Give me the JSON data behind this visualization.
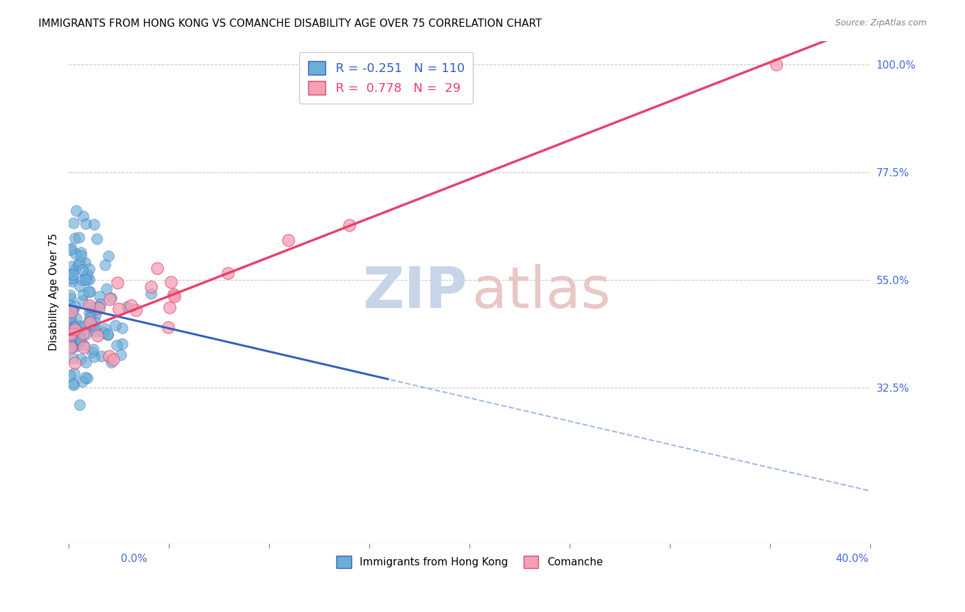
{
  "title": "IMMIGRANTS FROM HONG KONG VS COMANCHE DISABILITY AGE OVER 75 CORRELATION CHART",
  "source": "Source: ZipAtlas.com",
  "ylabel": "Disability Age Over 75",
  "ytick_vals": [
    0.325,
    0.55,
    0.775,
    1.0
  ],
  "ytick_labels": [
    "32.5%",
    "55.0%",
    "77.5%",
    "100.0%"
  ],
  "xmin": 0.0,
  "xmax": 0.4,
  "ymin": 0.0,
  "ymax": 1.05,
  "blue_color": "#6BAED6",
  "pink_color": "#F4A0B5",
  "blue_line_color": "#3060C0",
  "pink_line_color": "#E8406A",
  "blue_edge_color": "#3060C0",
  "pink_edge_color": "#E8406A",
  "title_fontsize": 11,
  "source_fontsize": 9,
  "watermark_zip_color": "#C8D4E8",
  "watermark_atlas_color": "#E8C8C4",
  "right_axis_color": "#4169E1",
  "xlabel_color": "#4169E1"
}
